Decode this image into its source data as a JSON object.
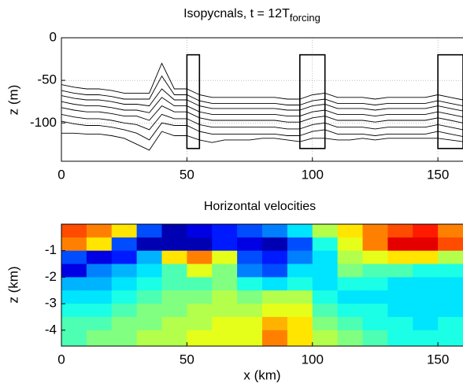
{
  "chart_data": [
    {
      "type": "line",
      "title": "Isopycnals, t = 12T",
      "title_subscript": "forcing",
      "ylabel": "z (m)",
      "x": [
        0,
        5,
        10,
        15,
        20,
        25,
        30,
        35,
        40,
        45,
        50,
        55,
        60,
        65,
        70,
        75,
        80,
        85,
        90,
        95,
        100,
        105,
        110,
        115,
        120,
        125,
        130,
        135,
        140,
        145,
        150,
        155,
        160
      ],
      "series": [
        {
          "color": "#000000",
          "values": [
            -55,
            -58,
            -60,
            -60,
            -62,
            -65,
            -65,
            -65,
            -30,
            -60,
            -60,
            -67,
            -70,
            -70,
            -70,
            -70,
            -70,
            -70,
            -72,
            -72,
            -67,
            -65,
            -70,
            -70,
            -70,
            -72,
            -70,
            -70,
            -70,
            -70,
            -67,
            -70,
            -73
          ]
        },
        {
          "color": "#000000",
          "values": [
            -62,
            -65,
            -67,
            -67,
            -69,
            -72,
            -72,
            -72,
            -45,
            -67,
            -67,
            -74,
            -77,
            -77,
            -77,
            -77,
            -77,
            -77,
            -79,
            -79,
            -74,
            -72,
            -77,
            -77,
            -77,
            -79,
            -77,
            -77,
            -77,
            -77,
            -74,
            -77,
            -80
          ]
        },
        {
          "color": "#000000",
          "values": [
            -68,
            -71,
            -73,
            -73,
            -75,
            -78,
            -78,
            -80,
            -60,
            -73,
            -73,
            -80,
            -83,
            -83,
            -83,
            -83,
            -83,
            -83,
            -85,
            -85,
            -80,
            -78,
            -83,
            -83,
            -83,
            -85,
            -83,
            -83,
            -83,
            -83,
            -80,
            -83,
            -86
          ]
        },
        {
          "color": "#000000",
          "values": [
            -75,
            -78,
            -80,
            -80,
            -82,
            -85,
            -85,
            -88,
            -70,
            -80,
            -80,
            -87,
            -90,
            -90,
            -90,
            -90,
            -90,
            -90,
            -92,
            -92,
            -87,
            -85,
            -90,
            -90,
            -90,
            -92,
            -90,
            -90,
            -90,
            -90,
            -87,
            -90,
            -93
          ]
        },
        {
          "color": "#000000",
          "values": [
            -82,
            -85,
            -87,
            -87,
            -89,
            -92,
            -92,
            -97,
            -80,
            -87,
            -87,
            -94,
            -97,
            -97,
            -97,
            -97,
            -97,
            -97,
            -99,
            -99,
            -94,
            -92,
            -97,
            -97,
            -97,
            -99,
            -97,
            -97,
            -97,
            -97,
            -94,
            -97,
            -100
          ]
        },
        {
          "color": "#000000",
          "values": [
            -90,
            -93,
            -95,
            -95,
            -97,
            -100,
            -102,
            -108,
            -90,
            -95,
            -95,
            -102,
            -105,
            -105,
            -105,
            -105,
            -105,
            -105,
            -107,
            -107,
            -102,
            -100,
            -105,
            -105,
            -105,
            -107,
            -105,
            -105,
            -105,
            -105,
            -102,
            -105,
            -108
          ]
        },
        {
          "color": "#000000",
          "values": [
            -98,
            -101,
            -103,
            -103,
            -105,
            -108,
            -112,
            -120,
            -100,
            -103,
            -103,
            -110,
            -113,
            -113,
            -113,
            -113,
            -113,
            -113,
            -115,
            -115,
            -110,
            -108,
            -113,
            -113,
            -113,
            -115,
            -113,
            -113,
            -113,
            -113,
            -110,
            -113,
            -116
          ]
        },
        {
          "color": "#000000",
          "values": [
            -112,
            -112,
            -113,
            -113,
            -115,
            -118,
            -125,
            -132,
            -110,
            -115,
            -115,
            -120,
            -123,
            -120,
            -120,
            -120,
            -118,
            -118,
            -120,
            -122,
            -118,
            -118,
            -120,
            -120,
            -118,
            -120,
            -118,
            -118,
            -118,
            -118,
            -118,
            -120,
            -122
          ]
        }
      ],
      "boxes": [
        {
          "x": [
            50,
            55
          ],
          "y": [
            -130,
            -20
          ]
        },
        {
          "x": [
            95,
            105
          ],
          "y": [
            -130,
            -20
          ]
        },
        {
          "x": [
            150,
            160
          ],
          "y": [
            -130,
            -20
          ]
        }
      ],
      "xlim": [
        0,
        160
      ],
      "xticks": [
        0,
        50,
        100,
        150
      ],
      "ylim": [
        -145,
        0
      ],
      "yticks": [
        0,
        -50,
        -100
      ],
      "grid": true
    },
    {
      "type": "heatmap",
      "title": "Horizontal velocities",
      "xlabel": "x (km)",
      "ylabel": "z (km)",
      "colormap": "jet",
      "clim": [
        -1,
        1
      ],
      "xbins": [
        0,
        10,
        20,
        30,
        40,
        50,
        60,
        70,
        80,
        90,
        100,
        110,
        120,
        130,
        140,
        150,
        160
      ],
      "ybins": [
        0,
        -0.5,
        -1,
        -1.5,
        -2,
        -2.5,
        -3,
        -3.5,
        -4,
        -4.6
      ],
      "z": [
        [
          0.6,
          0.5,
          0.3,
          -0.6,
          -0.9,
          -0.8,
          -0.7,
          -0.6,
          -0.5,
          -0.3,
          0.1,
          0.3,
          0.5,
          0.6,
          0.7,
          0.5
        ],
        [
          0.5,
          0.3,
          -0.6,
          -0.9,
          -0.9,
          -0.9,
          -0.7,
          -0.8,
          -0.9,
          -0.6,
          -0.2,
          0.2,
          0.5,
          0.8,
          0.8,
          0.6
        ],
        [
          -0.6,
          -0.8,
          -0.7,
          -0.4,
          0.3,
          0.5,
          0.2,
          -0.6,
          -0.7,
          -0.5,
          -0.3,
          0.1,
          0.2,
          0.3,
          0.3,
          0.1
        ],
        [
          -0.8,
          -0.5,
          -0.4,
          -0.3,
          -0.1,
          0.2,
          0.0,
          -0.5,
          -0.6,
          -0.3,
          -0.3,
          0.0,
          -0.1,
          -0.1,
          -0.2,
          -0.2
        ],
        [
          -0.4,
          -0.4,
          -0.3,
          -0.2,
          -0.1,
          -0.1,
          0.0,
          -0.2,
          -0.3,
          -0.2,
          -0.3,
          -0.2,
          -0.2,
          -0.3,
          -0.3,
          -0.3
        ],
        [
          -0.3,
          -0.3,
          -0.2,
          -0.1,
          0.0,
          0.0,
          0.1,
          0.0,
          0.1,
          0.1,
          -0.2,
          -0.3,
          -0.3,
          -0.3,
          -0.3,
          -0.3
        ],
        [
          -0.2,
          -0.2,
          -0.1,
          0.0,
          0.0,
          0.1,
          0.1,
          0.1,
          0.2,
          0.2,
          -0.1,
          -0.2,
          -0.2,
          -0.3,
          -0.3,
          -0.3
        ],
        [
          -0.1,
          -0.1,
          0.0,
          0.0,
          0.1,
          0.1,
          0.2,
          0.2,
          0.4,
          0.3,
          0.0,
          -0.1,
          -0.2,
          -0.2,
          -0.3,
          -0.2
        ],
        [
          -0.1,
          0.0,
          0.0,
          0.1,
          0.1,
          0.2,
          0.2,
          0.2,
          0.5,
          0.3,
          0.1,
          0.0,
          -0.1,
          -0.2,
          -0.2,
          -0.2
        ]
      ],
      "xlim": [
        0,
        160
      ],
      "xticks": [
        0,
        50,
        100,
        150
      ],
      "ylim": [
        -4.6,
        0
      ],
      "yticks": [
        -1,
        -2,
        -3,
        -4
      ]
    }
  ]
}
